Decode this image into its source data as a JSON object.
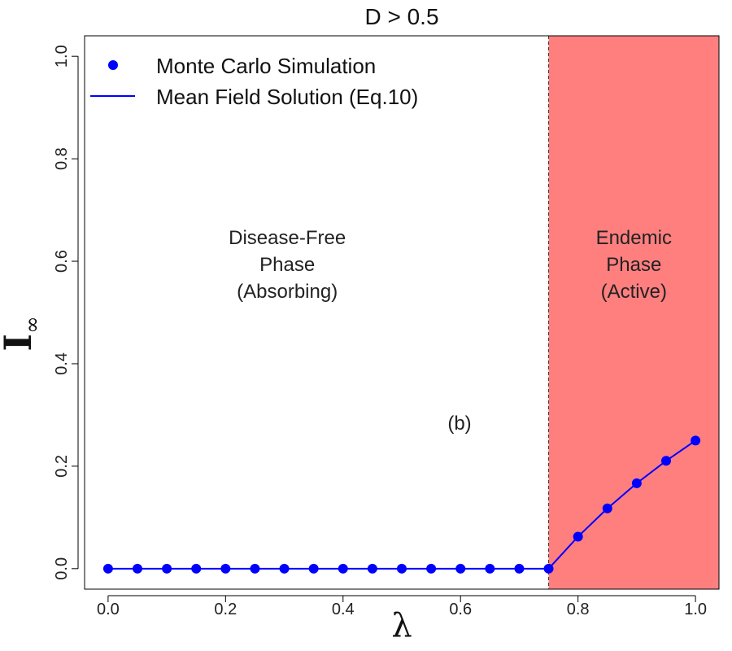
{
  "chart_data": {
    "type": "line",
    "title": "D > 0.5",
    "xlabel": "λ",
    "ylabel": "I∞",
    "xlim": [
      -0.04,
      1.04
    ],
    "ylim": [
      -0.04,
      1.04
    ],
    "x_ticks": [
      "0.0",
      "0.2",
      "0.4",
      "0.6",
      "0.8",
      "1.0"
    ],
    "y_ticks": [
      "0.0",
      "0.2",
      "0.4",
      "0.6",
      "0.8",
      "1.0"
    ],
    "threshold": 0.75,
    "regions": [
      {
        "name": "Disease-Free Phase (Absorbing)",
        "lines": [
          "Disease-Free",
          "Phase",
          "(Absorbing)"
        ]
      },
      {
        "name": "Endemic Phase (Active)",
        "lines": [
          "Endemic",
          "Phase",
          "(Active)"
        ],
        "color": "#ff7f7f"
      }
    ],
    "panel_label": "(b)",
    "legend": {
      "position": "top-left",
      "entries": [
        "Monte Carlo Simulation",
        "Mean Field Solution (Eq.10)"
      ]
    },
    "series": [
      {
        "name": "Monte Carlo Simulation",
        "marker": "point",
        "color": "#0000ff",
        "x": [
          0.0,
          0.05,
          0.1,
          0.15,
          0.2,
          0.25,
          0.3,
          0.35,
          0.4,
          0.45,
          0.5,
          0.55,
          0.6,
          0.65,
          0.7,
          0.75,
          0.8,
          0.85,
          0.9,
          0.95,
          1.0
        ],
        "y": [
          0,
          0,
          0,
          0,
          0,
          0,
          0,
          0,
          0,
          0,
          0,
          0,
          0,
          0,
          0,
          0,
          0.0625,
          0.1176,
          0.1667,
          0.2105,
          0.25
        ]
      },
      {
        "name": "Mean Field Solution (Eq.10)",
        "marker": "line",
        "color": "#0000ff",
        "x": [
          0.0,
          0.75,
          0.8,
          0.85,
          0.9,
          0.95,
          1.0
        ],
        "y": [
          0,
          0,
          0.0625,
          0.1176,
          0.1667,
          0.2105,
          0.25
        ]
      }
    ]
  }
}
